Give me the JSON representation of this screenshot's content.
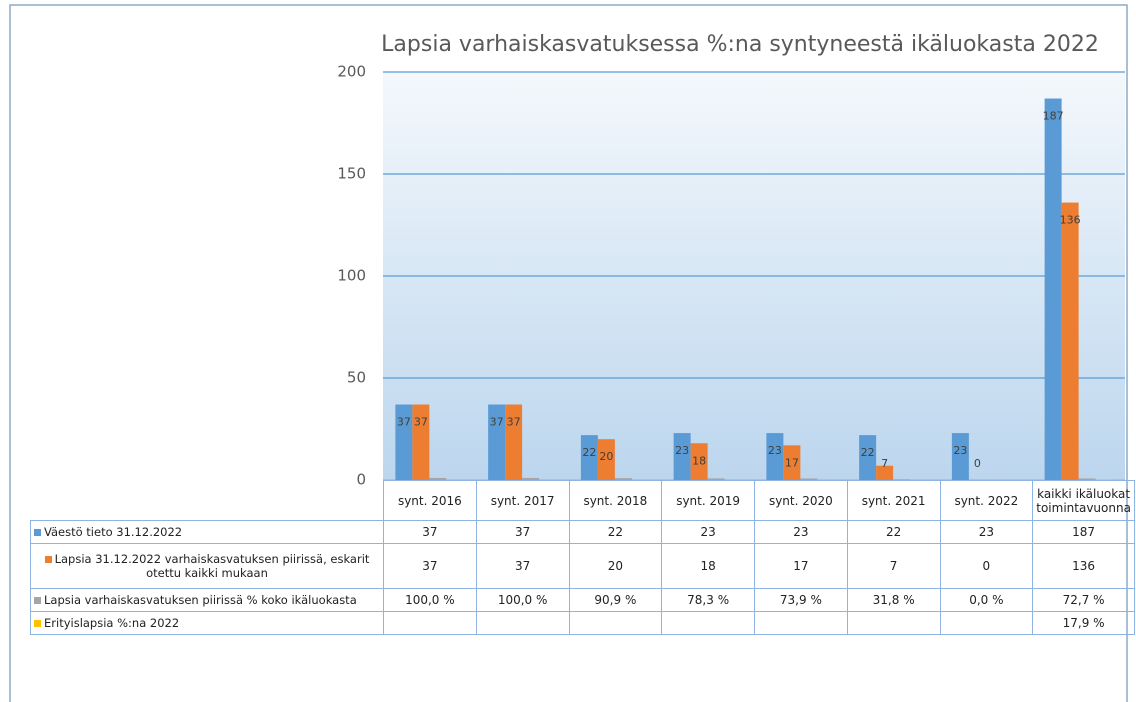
{
  "chart_data": {
    "type": "bar",
    "title": "Lapsia varhaiskasvatuksessa %:na syntyneestä ikäluokasta 2022",
    "categories": [
      "synt. 2016",
      "synt. 2017",
      "synt. 2018",
      "synt. 2019",
      "synt. 2020",
      "synt. 2021",
      "synt. 2022",
      "kaikki ikäluokat toimintavuonna"
    ],
    "series": [
      {
        "name": "Väestö tieto 31.12.2022",
        "color": "#5b9bd5",
        "values": [
          37,
          37,
          22,
          23,
          23,
          22,
          23,
          187
        ]
      },
      {
        "name": "Lapsia 31.12.2022 varhaiskasvatuksen piirissä, eskarit otettu kaikki mukaan",
        "color": "#ed7d31",
        "values": [
          37,
          37,
          20,
          18,
          17,
          7,
          0,
          136
        ]
      },
      {
        "name": "Lapsia varhaiskasvatuksen piirissä % koko ikäluokasta",
        "color": "#a5a5a5",
        "values": [
          1,
          1,
          0.909,
          0.783,
          0.739,
          0.318,
          0,
          0.727
        ],
        "value_labels": [
          "100,0 %",
          "100,0 %",
          "90,9 %",
          "78,3 %",
          "73,9 %",
          "31,8 %",
          "0,0 %",
          "72,7 %"
        ]
      },
      {
        "name": "Erityislapsia %:na 2022",
        "color": "#ffc000",
        "values": [
          null,
          null,
          null,
          null,
          null,
          null,
          null,
          0.179
        ],
        "value_labels": [
          null,
          null,
          null,
          null,
          null,
          null,
          null,
          "17,9 %"
        ]
      }
    ],
    "ylim": [
      0,
      200
    ],
    "yticks": [
      0,
      50,
      100,
      150,
      200
    ],
    "grid": true
  }
}
